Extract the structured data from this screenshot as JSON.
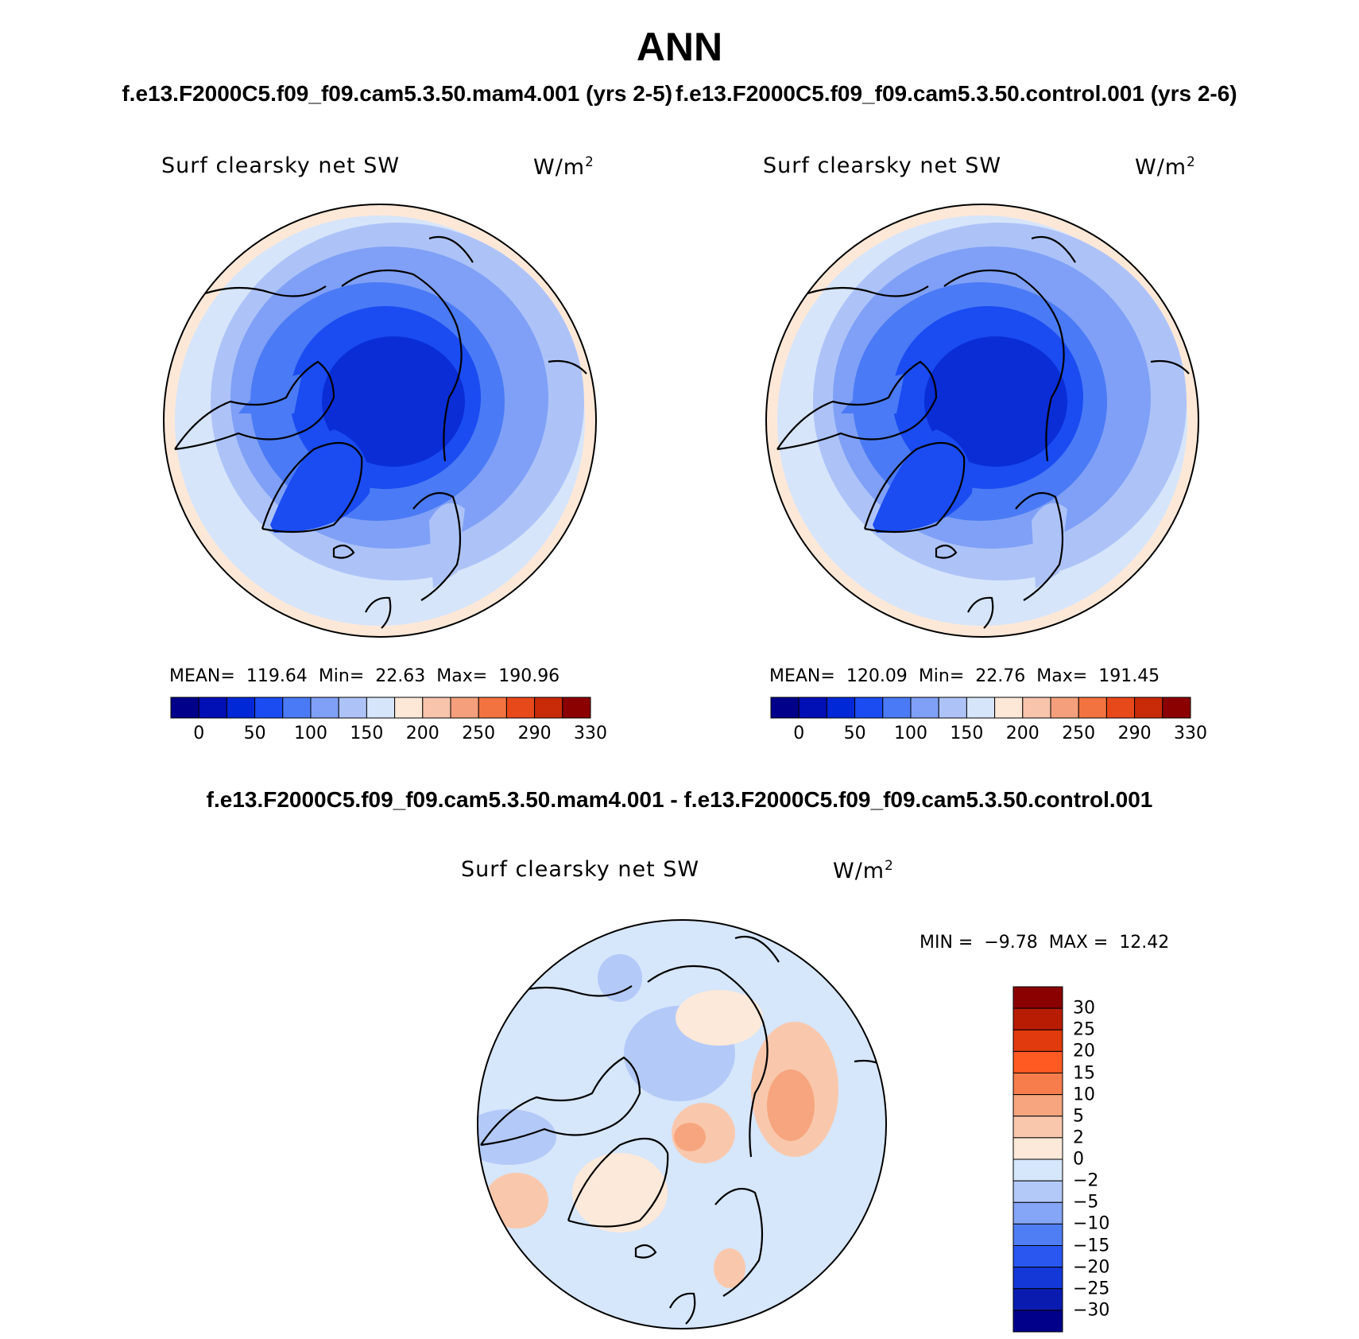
{
  "title": "ANN",
  "cases": {
    "test": "f.e13.F2000C5.f09_f09.cam5.3.50.mam4.001 (yrs 2-5)",
    "control": "f.e13.F2000C5.f09_f09.cam5.3.50.control.001 (yrs 2-6)"
  },
  "panels": [
    {
      "variable": "Surf clearsky net SW",
      "units_base": "W/m",
      "units_exp": "2",
      "mean_label": "MEAN=",
      "mean": "119.64",
      "min_label": "Min=",
      "min": "22.63",
      "max_label": "Max=",
      "max": "190.96"
    },
    {
      "variable": "Surf clearsky net SW",
      "units_base": "W/m",
      "units_exp": "2",
      "mean_label": "MEAN=",
      "mean": "120.09",
      "min_label": "Min=",
      "min": "22.76",
      "max_label": "Max=",
      "max": "191.45"
    }
  ],
  "diff": {
    "title": "f.e13.F2000C5.f09_f09.cam5.3.50.mam4.001 - f.e13.F2000C5.f09_f09.cam5.3.50.control.001",
    "variable": "Surf clearsky net SW",
    "units_base": "W/m",
    "units_exp": "2",
    "min_label": "MIN =",
    "min": "−9.78",
    "max_label": "MAX =",
    "max": "12.42"
  },
  "colorbar_main": {
    "colors": [
      "#00008b",
      "#0010b5",
      "#0028d7",
      "#1a4cf2",
      "#4a7af5",
      "#7fa0f6",
      "#adc3f8",
      "#d6e5fa",
      "#fde8d8",
      "#f8c4ab",
      "#f59f7c",
      "#f2733f",
      "#e8491a",
      "#c92a08",
      "#8b0000"
    ],
    "tick_labels": [
      "0",
      "50",
      "100",
      "150",
      "200",
      "250",
      "290",
      "330"
    ]
  },
  "colorbar_diff": {
    "colors_top_to_bottom": [
      "#8b0000",
      "#b81d04",
      "#e03a0e",
      "#ff5a22",
      "#f77e4c",
      "#f7a57e",
      "#f9c8ac",
      "#fde9d9",
      "#d6e6fb",
      "#b3c9f8",
      "#85a5f6",
      "#4f7ef4",
      "#2a57f0",
      "#1438d8",
      "#0a1cb0",
      "#00008b"
    ],
    "tick_labels": [
      "30",
      "25",
      "20",
      "15",
      "10",
      "5",
      "2",
      "0",
      "−2",
      "−5",
      "−10",
      "−15",
      "−20",
      "−25",
      "−30"
    ]
  },
  "chart_data": {
    "type": "heatmap",
    "title": "ANN",
    "description_variable": "Surf clearsky net SW",
    "projection": "north-polar-stereographic",
    "contour_levels_main": [
      0,
      25,
      50,
      75,
      100,
      125,
      150,
      175,
      200,
      225,
      250,
      270,
      290,
      310,
      330
    ],
    "contour_levels_diff": [
      -30,
      -25,
      -20,
      -15,
      -10,
      -5,
      -2,
      0,
      2,
      5,
      10,
      15,
      20,
      25,
      30
    ],
    "panel_stats": [
      {
        "case": "mam4.001",
        "mean": 119.64,
        "min": 22.63,
        "max": 190.96
      },
      {
        "case": "control.001",
        "mean": 120.09,
        "min": 22.76,
        "max": 191.45
      },
      {
        "case": "difference",
        "min": -9.78,
        "max": 12.42
      }
    ]
  }
}
